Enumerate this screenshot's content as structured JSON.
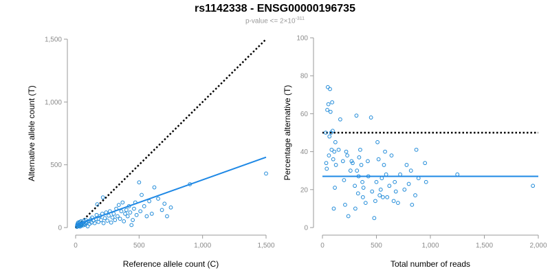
{
  "title": "rs1142338 - ENSG00000196735",
  "subtitle": {
    "prefix": "p-value <= 2",
    "times": "×",
    "base": "10",
    "exponent": "-311"
  },
  "chart_data": [
    {
      "type": "scatter",
      "xlabel": "Reference allele count (C)",
      "ylabel": "Alternative allele count (T)",
      "xlim": [
        0,
        1500
      ],
      "ylim": [
        0,
        1500
      ],
      "xticks": [
        0,
        500,
        1000,
        1500
      ],
      "xtick_labels": [
        "0",
        "500",
        "1,000",
        "1,500"
      ],
      "yticks": [
        0,
        500,
        1000,
        1500
      ],
      "ytick_labels": [
        "0",
        "500",
        "1,000",
        "1,500"
      ],
      "grid": false,
      "colors": {
        "points": "#1f8ad8",
        "fit": "#1e88e5",
        "reference": "#000000"
      },
      "reference_line": {
        "style": "dotted",
        "x": [
          0,
          1500
        ],
        "y": [
          0,
          1500
        ]
      },
      "fit_line": {
        "style": "solid",
        "x": [
          0,
          1500
        ],
        "y": [
          20,
          560
        ]
      },
      "points": [
        [
          10,
          5
        ],
        [
          12,
          18
        ],
        [
          15,
          30
        ],
        [
          18,
          10
        ],
        [
          20,
          40
        ],
        [
          22,
          22
        ],
        [
          25,
          12
        ],
        [
          28,
          35
        ],
        [
          30,
          15
        ],
        [
          32,
          45
        ],
        [
          35,
          8
        ],
        [
          38,
          28
        ],
        [
          40,
          20
        ],
        [
          42,
          50
        ],
        [
          45,
          14
        ],
        [
          48,
          32
        ],
        [
          50,
          25
        ],
        [
          55,
          40
        ],
        [
          60,
          18
        ],
        [
          65,
          55
        ],
        [
          70,
          30
        ],
        [
          75,
          22
        ],
        [
          80,
          60
        ],
        [
          85,
          35
        ],
        [
          90,
          45
        ],
        [
          95,
          10
        ],
        [
          100,
          50
        ],
        [
          110,
          30
        ],
        [
          120,
          65
        ],
        [
          125,
          40
        ],
        [
          130,
          80
        ],
        [
          140,
          55
        ],
        [
          150,
          35
        ],
        [
          160,
          70
        ],
        [
          165,
          100
        ],
        [
          170,
          185
        ],
        [
          180,
          45
        ],
        [
          190,
          90
        ],
        [
          200,
          60
        ],
        [
          210,
          110
        ],
        [
          215,
          240
        ],
        [
          220,
          35
        ],
        [
          230,
          75
        ],
        [
          240,
          120
        ],
        [
          250,
          55
        ],
        [
          260,
          95
        ],
        [
          270,
          130
        ],
        [
          280,
          40
        ],
        [
          290,
          80
        ],
        [
          300,
          110
        ],
        [
          310,
          60
        ],
        [
          320,
          150
        ],
        [
          330,
          90
        ],
        [
          340,
          180
        ],
        [
          350,
          70
        ],
        [
          360,
          130
        ],
        [
          370,
          200
        ],
        [
          380,
          50
        ],
        [
          390,
          110
        ],
        [
          400,
          140
        ],
        [
          410,
          90
        ],
        [
          420,
          170
        ],
        [
          430,
          120
        ],
        [
          440,
          20
        ],
        [
          450,
          60
        ],
        [
          460,
          150
        ],
        [
          470,
          200
        ],
        [
          480,
          100
        ],
        [
          500,
          360
        ],
        [
          510,
          130
        ],
        [
          520,
          260
        ],
        [
          540,
          170
        ],
        [
          560,
          90
        ],
        [
          580,
          210
        ],
        [
          600,
          110
        ],
        [
          620,
          320
        ],
        [
          650,
          230
        ],
        [
          680,
          140
        ],
        [
          700,
          190
        ],
        [
          720,
          90
        ],
        [
          750,
          160
        ],
        [
          900,
          345
        ],
        [
          1500,
          430
        ]
      ]
    },
    {
      "type": "scatter",
      "xlabel": "Total number of reads",
      "ylabel": "Percentage alternative (T)",
      "xlim": [
        0,
        2000
      ],
      "ylim": [
        0,
        100
      ],
      "xticks": [
        0,
        500,
        1000,
        1500,
        2000
      ],
      "xtick_labels": [
        "0",
        "500",
        "1,000",
        "1,500",
        "2,000"
      ],
      "yticks": [
        0,
        20,
        40,
        60,
        80,
        100
      ],
      "ytick_labels": [
        "0",
        "20",
        "40",
        "60",
        "80",
        "100"
      ],
      "grid": false,
      "colors": {
        "points": "#1f8ad8",
        "fit": "#1e88e5",
        "reference": "#000000"
      },
      "reference_line": {
        "style": "dotted",
        "x": [
          0,
          2000
        ],
        "y": [
          50,
          50
        ]
      },
      "fit_line": {
        "style": "solid",
        "x": [
          0,
          2000
        ],
        "y": [
          27,
          27
        ]
      },
      "points": [
        [
          30,
          50
        ],
        [
          35,
          34
        ],
        [
          40,
          31
        ],
        [
          45,
          62
        ],
        [
          50,
          74
        ],
        [
          55,
          65
        ],
        [
          60,
          38
        ],
        [
          65,
          48
        ],
        [
          70,
          73
        ],
        [
          75,
          61
        ],
        [
          80,
          50
        ],
        [
          85,
          41
        ],
        [
          90,
          66
        ],
        [
          95,
          51
        ],
        [
          100,
          36
        ],
        [
          105,
          10
        ],
        [
          110,
          40
        ],
        [
          115,
          21
        ],
        [
          120,
          45
        ],
        [
          125,
          33
        ],
        [
          150,
          41
        ],
        [
          165,
          57
        ],
        [
          190,
          35
        ],
        [
          200,
          25
        ],
        [
          210,
          12
        ],
        [
          220,
          40
        ],
        [
          230,
          38
        ],
        [
          240,
          6
        ],
        [
          260,
          30
        ],
        [
          270,
          35
        ],
        [
          280,
          34
        ],
        [
          300,
          22
        ],
        [
          305,
          10
        ],
        [
          315,
          59
        ],
        [
          320,
          30
        ],
        [
          330,
          18
        ],
        [
          335,
          27
        ],
        [
          340,
          37
        ],
        [
          350,
          41
        ],
        [
          360,
          33
        ],
        [
          370,
          24
        ],
        [
          375,
          16
        ],
        [
          380,
          21
        ],
        [
          400,
          13
        ],
        [
          420,
          35
        ],
        [
          425,
          27
        ],
        [
          450,
          58
        ],
        [
          460,
          19
        ],
        [
          480,
          5
        ],
        [
          490,
          14
        ],
        [
          500,
          24
        ],
        [
          510,
          45
        ],
        [
          520,
          36
        ],
        [
          530,
          17
        ],
        [
          540,
          20
        ],
        [
          550,
          26
        ],
        [
          560,
          16
        ],
        [
          570,
          33
        ],
        [
          580,
          40
        ],
        [
          590,
          28
        ],
        [
          600,
          16
        ],
        [
          620,
          22
        ],
        [
          640,
          38
        ],
        [
          660,
          14
        ],
        [
          670,
          24
        ],
        [
          680,
          19
        ],
        [
          700,
          13
        ],
        [
          720,
          28
        ],
        [
          760,
          20
        ],
        [
          780,
          33
        ],
        [
          800,
          23
        ],
        [
          820,
          30
        ],
        [
          830,
          12
        ],
        [
          860,
          17
        ],
        [
          870,
          41
        ],
        [
          890,
          26
        ],
        [
          950,
          34
        ],
        [
          960,
          24
        ],
        [
          1250,
          28
        ],
        [
          1950,
          22
        ]
      ]
    }
  ]
}
